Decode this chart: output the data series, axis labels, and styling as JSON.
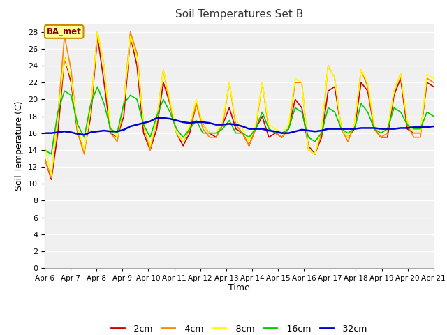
{
  "title": "Soil Temperatures Set B",
  "xlabel": "Time",
  "ylabel": "Soil Temperature (C)",
  "ylim": [
    0,
    29
  ],
  "yticks": [
    0,
    2,
    4,
    6,
    8,
    10,
    12,
    14,
    16,
    18,
    20,
    22,
    24,
    26,
    28
  ],
  "background_color": "#ffffff",
  "plot_bg_color": "#f0f0f0",
  "legend_label": "BA_met",
  "series": {
    "-2cm": {
      "color": "#cc0000",
      "linewidth": 1.2,
      "values": [
        13.0,
        10.5,
        16.0,
        25.0,
        22.0,
        16.0,
        14.0,
        18.0,
        27.5,
        22.0,
        16.0,
        15.5,
        18.0,
        27.5,
        24.0,
        16.0,
        14.0,
        16.5,
        22.0,
        19.5,
        16.0,
        14.5,
        16.0,
        19.5,
        17.0,
        16.0,
        15.5,
        17.0,
        19.0,
        16.5,
        16.0,
        14.5,
        16.5,
        18.0,
        15.5,
        16.0,
        15.5,
        16.5,
        20.0,
        19.0,
        14.5,
        13.5,
        15.5,
        21.0,
        21.5,
        16.5,
        15.5,
        16.5,
        22.0,
        21.0,
        16.5,
        15.5,
        15.5,
        20.5,
        22.5,
        16.5,
        16.0,
        16.0,
        22.0,
        21.5
      ]
    },
    "-4cm": {
      "color": "#ff8800",
      "linewidth": 1.2,
      "values": [
        13.0,
        10.7,
        18.0,
        27.5,
        23.5,
        16.0,
        13.5,
        19.0,
        28.0,
        24.0,
        16.0,
        15.0,
        19.5,
        28.0,
        25.5,
        17.0,
        14.0,
        17.5,
        23.5,
        19.5,
        16.0,
        15.0,
        16.5,
        19.5,
        16.5,
        15.5,
        15.5,
        17.0,
        22.0,
        17.0,
        16.0,
        14.5,
        16.5,
        22.0,
        16.5,
        16.0,
        15.5,
        16.5,
        22.0,
        22.0,
        14.0,
        13.5,
        16.0,
        24.0,
        22.5,
        16.5,
        15.0,
        17.0,
        23.5,
        21.5,
        16.5,
        15.5,
        16.0,
        21.0,
        23.0,
        17.0,
        15.5,
        15.5,
        22.5,
        22.0
      ]
    },
    "-8cm": {
      "color": "#ffff00",
      "linewidth": 1.2,
      "values": [
        14.5,
        11.0,
        18.0,
        25.0,
        22.5,
        16.5,
        14.0,
        19.0,
        28.0,
        24.0,
        16.5,
        15.5,
        19.5,
        27.5,
        25.0,
        17.0,
        14.5,
        17.5,
        23.5,
        20.0,
        16.0,
        15.0,
        17.0,
        20.0,
        17.0,
        16.0,
        16.0,
        17.5,
        22.0,
        17.5,
        16.5,
        15.0,
        17.0,
        22.0,
        17.0,
        16.5,
        16.0,
        17.0,
        22.5,
        22.0,
        14.0,
        13.5,
        16.5,
        24.0,
        22.5,
        16.5,
        15.5,
        17.0,
        23.5,
        22.0,
        17.0,
        16.0,
        16.5,
        21.0,
        23.0,
        17.5,
        16.0,
        16.0,
        23.0,
        22.5
      ]
    },
    "-16cm": {
      "color": "#00cc00",
      "linewidth": 1.2,
      "values": [
        14.0,
        13.5,
        18.5,
        21.0,
        20.5,
        17.0,
        15.5,
        19.5,
        21.5,
        19.5,
        16.5,
        16.0,
        19.5,
        20.5,
        20.0,
        17.0,
        15.5,
        18.0,
        20.0,
        18.5,
        16.5,
        15.5,
        16.5,
        17.5,
        16.0,
        16.0,
        16.0,
        16.5,
        17.5,
        16.0,
        16.0,
        15.5,
        16.5,
        18.5,
        16.5,
        16.0,
        16.0,
        16.5,
        19.0,
        18.5,
        15.5,
        15.0,
        16.0,
        19.0,
        18.5,
        16.5,
        16.0,
        16.5,
        19.5,
        18.5,
        16.5,
        16.0,
        16.5,
        19.0,
        18.5,
        17.0,
        16.5,
        16.5,
        18.5,
        18.0
      ]
    },
    "-32cm": {
      "color": "#0000cc",
      "linewidth": 1.8,
      "values": [
        16.0,
        16.0,
        16.1,
        16.2,
        16.1,
        15.9,
        15.8,
        16.1,
        16.2,
        16.3,
        16.2,
        16.2,
        16.4,
        16.8,
        17.0,
        17.2,
        17.4,
        17.8,
        17.8,
        17.7,
        17.5,
        17.3,
        17.2,
        17.3,
        17.3,
        17.2,
        17.0,
        17.0,
        17.1,
        17.0,
        16.8,
        16.5,
        16.5,
        16.5,
        16.3,
        16.2,
        16.0,
        16.0,
        16.2,
        16.4,
        16.3,
        16.2,
        16.3,
        16.5,
        16.5,
        16.5,
        16.5,
        16.5,
        16.6,
        16.6,
        16.6,
        16.5,
        16.5,
        16.5,
        16.6,
        16.6,
        16.7,
        16.7,
        16.7,
        16.8
      ]
    }
  },
  "x_tick_labels": [
    "Apr 6",
    "Apr 7",
    "Apr 8",
    "Apr 9",
    "Apr 10",
    "Apr 11",
    "Apr 12",
    "Apr 13",
    "Apr 14",
    "Apr 15",
    "Apr 16",
    "Apr 17",
    "Apr 18",
    "Apr 19",
    "Apr 20",
    "Apr 21"
  ],
  "n_points": 60
}
